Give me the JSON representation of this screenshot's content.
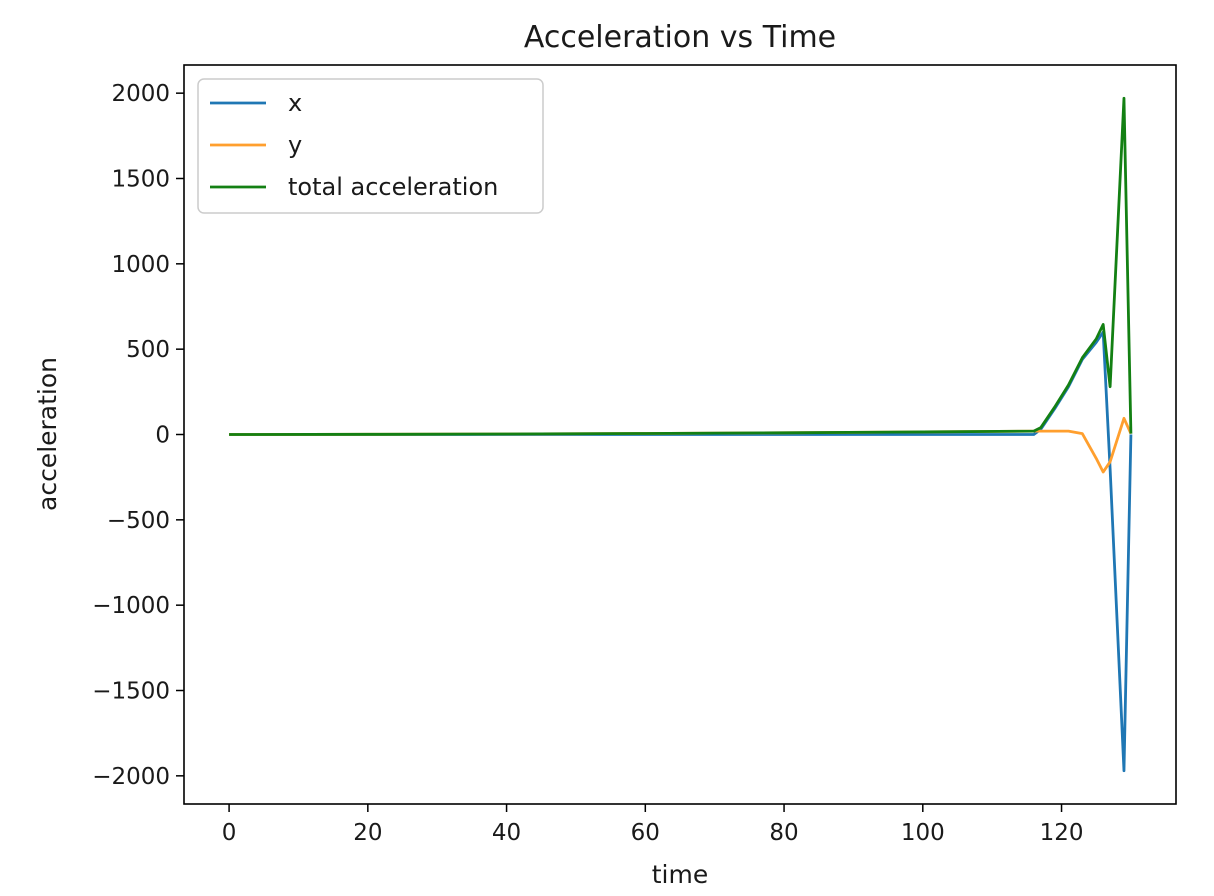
{
  "chart_data": {
    "type": "line",
    "title": "Acceleration vs Time",
    "xlabel": "time",
    "ylabel": "acceleration",
    "xlim": [
      -6.5,
      136.5
    ],
    "ylim": [
      -2165,
      2165
    ],
    "xticks": [
      0,
      20,
      40,
      60,
      80,
      100,
      120
    ],
    "xtick_labels": [
      "0",
      "20",
      "40",
      "60",
      "80",
      "100",
      "120"
    ],
    "yticks": [
      2000,
      1500,
      1000,
      500,
      0,
      -500,
      -1000,
      -1500,
      -2000
    ],
    "ytick_labels": [
      "2000",
      "1500",
      "1000",
      "500",
      "0",
      "−500",
      "−1000",
      "−1500",
      "−2000"
    ],
    "grid": false,
    "legend_position": "upper-left",
    "series": [
      {
        "name": "x",
        "color": "#1f77b4",
        "x": [
          0,
          20,
          40,
          60,
          80,
          100,
          116,
          117,
          119,
          121,
          123,
          125,
          126,
          127,
          129,
          130
        ],
        "y": [
          0,
          0,
          0,
          0,
          0,
          0,
          0,
          30,
          150,
          280,
          440,
          540,
          600,
          -200,
          -1970,
          0
        ]
      },
      {
        "name": "y",
        "color": "#ff9f2e",
        "x": [
          0,
          20,
          40,
          60,
          80,
          100,
          116,
          117,
          119,
          121,
          123,
          125,
          126,
          127,
          129,
          130
        ],
        "y": [
          0,
          1,
          3,
          6,
          10,
          15,
          20,
          20,
          20,
          20,
          5,
          -140,
          -220,
          -160,
          95,
          5
        ]
      },
      {
        "name": "total acceleration",
        "color": "#138013",
        "x": [
          0,
          20,
          40,
          60,
          80,
          100,
          116,
          117,
          119,
          121,
          123,
          125,
          126,
          127,
          129,
          130
        ],
        "y": [
          0,
          1,
          3,
          6,
          10,
          15,
          20,
          40,
          160,
          290,
          450,
          560,
          645,
          280,
          1970,
          5
        ]
      }
    ]
  }
}
